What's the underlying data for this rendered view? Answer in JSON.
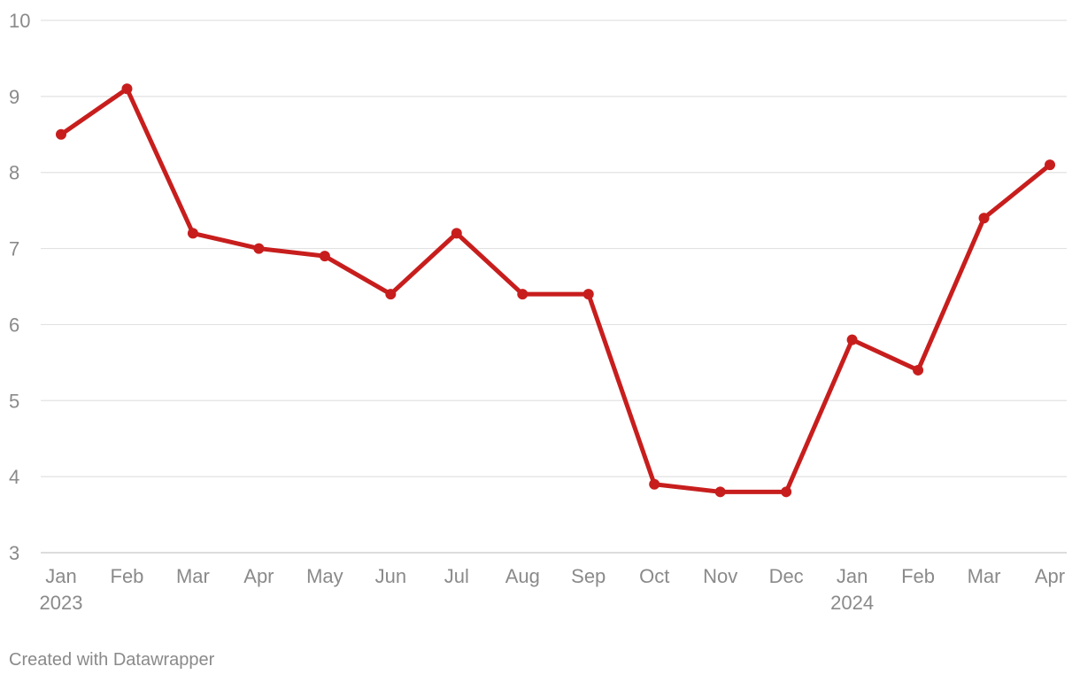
{
  "chart_data": {
    "type": "line",
    "categories": [
      "Jan",
      "Feb",
      "Mar",
      "Apr",
      "May",
      "Jun",
      "Jul",
      "Aug",
      "Sep",
      "Oct",
      "Nov",
      "Dec",
      "Jan",
      "Feb",
      "Mar",
      "Apr"
    ],
    "years": [
      "2023",
      null,
      null,
      null,
      null,
      null,
      null,
      null,
      null,
      null,
      null,
      null,
      "2024",
      null,
      null,
      null
    ],
    "series": [
      {
        "values": [
          8.5,
          9.1,
          7.2,
          7.0,
          6.9,
          6.4,
          7.2,
          6.4,
          6.4,
          3.9,
          3.8,
          3.8,
          5.8,
          5.4,
          7.4,
          8.1
        ],
        "color": "#c71e1d"
      }
    ],
    "yticks": [
      3,
      4,
      5,
      6,
      7,
      8,
      9,
      10
    ],
    "ylim": [
      3,
      10
    ],
    "grid": true,
    "title": "",
    "xlabel": "",
    "ylabel": ""
  },
  "footer": {
    "credit": "Created with Datawrapper"
  }
}
